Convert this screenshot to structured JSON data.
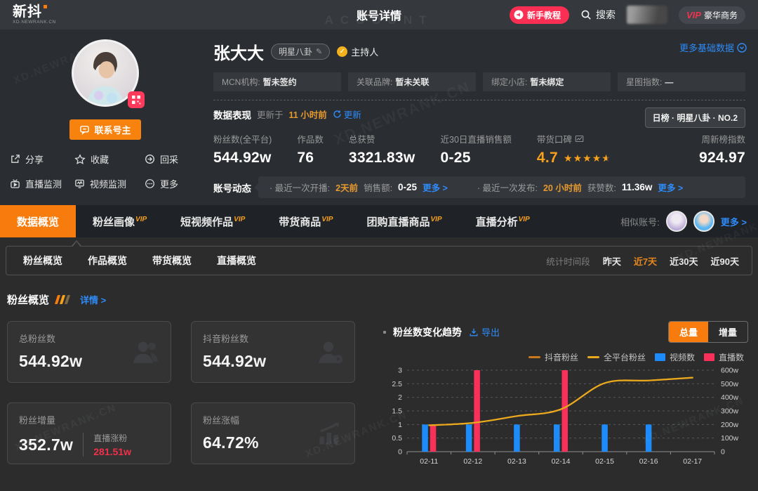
{
  "watermark": "XD.NEWRANK.CN",
  "header": {
    "logo_title": "新抖",
    "logo_subtitle": "XD.NEWRANK.CN",
    "page_title": "账号详情",
    "page_title_watermark": "ACCOUNT",
    "tutorial_button": "新手教程",
    "search_label": "搜索",
    "vip_text": "VIP",
    "vip_label": "豪华商务"
  },
  "profile": {
    "name": "张大大",
    "category_tag": "明星八卦",
    "verified_label": "主持人",
    "contact_button": "联系号主",
    "more_data_link": "更多基础数据",
    "rank_badge": "日榜 · 明星八卦 · NO.2",
    "actions": [
      {
        "label": "分享"
      },
      {
        "label": "收藏"
      },
      {
        "label": "回采"
      },
      {
        "label": "直播监测"
      },
      {
        "label": "视频监测"
      },
      {
        "label": "更多"
      }
    ],
    "info_fields": [
      {
        "label": "MCN机构:",
        "value": "暂未签约"
      },
      {
        "label": "关联品牌:",
        "value": "暂未关联"
      },
      {
        "label": "绑定小店:",
        "value": "暂未绑定"
      },
      {
        "label": "星图指数:",
        "value": "—"
      }
    ]
  },
  "performance": {
    "title": "数据表现",
    "updated_prefix": "更新于",
    "updated_time": "11 小时前",
    "refresh_label": "更新",
    "stats": [
      {
        "label": "粉丝数(全平台)",
        "value": "544.92w"
      },
      {
        "label": "作品数",
        "value": "76"
      },
      {
        "label": "总获赞",
        "value": "3321.83w"
      },
      {
        "label": "近30日直播销售额",
        "value": "0-25"
      },
      {
        "label": "带货口碑",
        "value": "4.7",
        "stars": 4.5
      },
      {
        "label": "周新榜指数",
        "value": "924.97"
      }
    ]
  },
  "dynamics": {
    "title": "账号动态",
    "live_label": "· 最近一次开播:",
    "live_time": "2天前",
    "sales_label": "销售额:",
    "sales_value": "0-25",
    "live_more": "更多 >",
    "post_label": "· 最近一次发布:",
    "post_time": "20 小时前",
    "likes_label": "获赞数:",
    "likes_value": "11.36w",
    "post_more": "更多 >"
  },
  "tabs": [
    {
      "label": "数据概览",
      "vip": ""
    },
    {
      "label": "粉丝画像",
      "vip": "VIP"
    },
    {
      "label": "短视频作品",
      "vip": "VIP"
    },
    {
      "label": "带货商品",
      "vip": "VIP"
    },
    {
      "label": "团购直播商品",
      "vip": "VIP"
    },
    {
      "label": "直播分析",
      "vip": "VIP"
    }
  ],
  "similar": {
    "label": "相似账号:",
    "more": "更多 >"
  },
  "subtabs": [
    {
      "label": "粉丝概览"
    },
    {
      "label": "作品概览"
    },
    {
      "label": "带货概览"
    },
    {
      "label": "直播概览"
    }
  ],
  "period": {
    "label": "统计时间段",
    "options": [
      {
        "label": "昨天"
      },
      {
        "label": "近7天"
      },
      {
        "label": "近30天"
      },
      {
        "label": "近90天"
      }
    ],
    "active": "近7天"
  },
  "fan_overview": {
    "title": "粉丝概览",
    "detail_link": "详情 >",
    "cards": [
      {
        "label": "总粉丝数",
        "value": "544.92w"
      },
      {
        "label": "抖音粉丝数",
        "value": "544.92w"
      },
      {
        "label": "粉丝增量",
        "value": "352.7w",
        "sub_label": "直播涨粉",
        "sub_value": "281.51w"
      },
      {
        "label": "粉丝涨幅",
        "value": "64.72%"
      }
    ]
  },
  "chart_section": {
    "title": "粉丝数变化趋势",
    "export_label": "导出",
    "toggle_total": "总量",
    "toggle_delta": "增量",
    "toggle_active": "总量"
  },
  "chart_data": {
    "type": "composite line+bar, dual y-axis",
    "categories": [
      "02-11",
      "02-12",
      "02-13",
      "02-14",
      "02-15",
      "02-16",
      "02-17"
    ],
    "series": [
      {
        "name": "抖音粉丝",
        "type": "line",
        "axis": "right",
        "color": "#c9791c",
        "values": [
          194,
          212,
          262,
          312,
          505,
          524,
          545
        ]
      },
      {
        "name": "全平台粉丝",
        "type": "line",
        "axis": "right",
        "color": "#e8a91e",
        "values": [
          194,
          212,
          262,
          312,
          505,
          524,
          545
        ]
      },
      {
        "name": "视频数",
        "type": "bar",
        "axis": "left",
        "color": "#1e8bfb",
        "values": [
          1,
          1,
          1,
          1,
          1,
          1,
          0
        ]
      },
      {
        "name": "直播数",
        "type": "bar",
        "axis": "left",
        "color": "#f9305a",
        "values": [
          1,
          3,
          0,
          3,
          0,
          0,
          0
        ]
      }
    ],
    "left_axis": {
      "ticks": [
        0,
        0.5,
        1,
        1.5,
        2,
        2.5,
        3
      ],
      "range": [
        0,
        3
      ]
    },
    "right_axis": {
      "ticks": [
        "0",
        "100w",
        "200w",
        "300w",
        "400w",
        "500w",
        "600w"
      ],
      "range": [
        0,
        600
      ],
      "unit": "w"
    },
    "grid": "dashed horizontal",
    "legend_position": "top-right"
  }
}
